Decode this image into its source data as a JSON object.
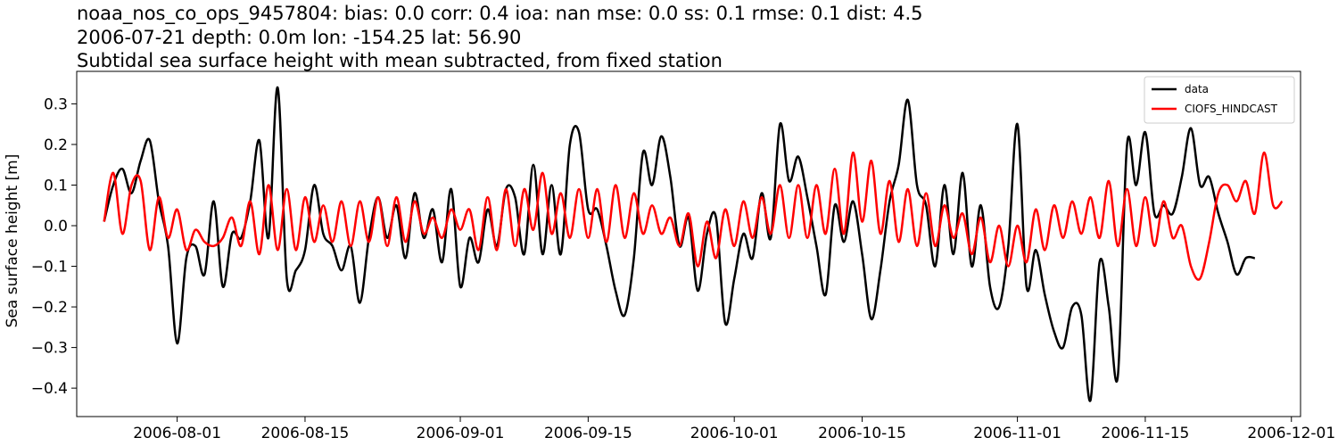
{
  "titles": {
    "line1": "noaa_nos_co_ops_9457804: bias: 0.0  corr: 0.4  ioa: nan  mse: 0.0  ss: 0.1  rmse: 0.1  dist: 4.5",
    "line2": "2006-07-21 depth: 0.0m lon: -154.25 lat: 56.90",
    "line3": "Subtidal sea surface height with mean subtracted, from fixed station"
  },
  "chart_data": {
    "type": "line",
    "title": "noaa_nos_co_ops_9457804: bias: 0.0  corr: 0.4  ioa: nan  mse: 0.0  ss: 0.1  rmse: 0.1  dist: 4.5",
    "subtitle": "2006-07-21 depth: 0.0m lon: -154.25 lat: 56.90 / Subtidal sea surface height with mean subtracted, from fixed station",
    "xlabel": "",
    "ylabel": "Sea surface height [m]",
    "xlim": [
      "2006-07-21",
      "2006-12-02"
    ],
    "ylim": [
      -0.47,
      0.38
    ],
    "x_ticks": [
      "2006-08-01",
      "2006-08-15",
      "2006-09-01",
      "2006-09-15",
      "2006-10-01",
      "2006-10-15",
      "2006-11-01",
      "2006-11-15",
      "2006-12-01"
    ],
    "y_ticks": [
      -0.4,
      -0.3,
      -0.2,
      -0.1,
      0.0,
      0.1,
      0.2,
      0.3
    ],
    "y_tick_labels": [
      "−0.4",
      "−0.3",
      "−0.2",
      "−0.1",
      "0.0",
      "0.1",
      "0.2",
      "0.3"
    ],
    "grid": false,
    "legend_position": "top-right",
    "series": [
      {
        "name": "data",
        "color": "#000000",
        "points": [
          [
            "2006-07-24",
            0.01
          ],
          [
            "2006-07-25",
            0.1
          ],
          [
            "2006-07-26",
            0.14
          ],
          [
            "2006-07-27",
            0.08
          ],
          [
            "2006-07-28",
            0.16
          ],
          [
            "2006-07-29",
            0.21
          ],
          [
            "2006-07-30",
            0.06
          ],
          [
            "2006-07-31",
            -0.05
          ],
          [
            "2006-08-01",
            -0.29
          ],
          [
            "2006-08-02",
            -0.08
          ],
          [
            "2006-08-03",
            -0.05
          ],
          [
            "2006-08-04",
            -0.12
          ],
          [
            "2006-08-05",
            0.06
          ],
          [
            "2006-08-06",
            -0.15
          ],
          [
            "2006-08-07",
            -0.02
          ],
          [
            "2006-08-08",
            -0.03
          ],
          [
            "2006-08-09",
            0.06
          ],
          [
            "2006-08-10",
            0.21
          ],
          [
            "2006-08-11",
            -0.03
          ],
          [
            "2006-08-12",
            0.34
          ],
          [
            "2006-08-13",
            -0.13
          ],
          [
            "2006-08-14",
            -0.11
          ],
          [
            "2006-08-15",
            -0.06
          ],
          [
            "2006-08-16",
            0.1
          ],
          [
            "2006-08-17",
            -0.02
          ],
          [
            "2006-08-18",
            -0.05
          ],
          [
            "2006-08-19",
            -0.11
          ],
          [
            "2006-08-20",
            -0.05
          ],
          [
            "2006-08-21",
            -0.19
          ],
          [
            "2006-08-22",
            -0.03
          ],
          [
            "2006-08-23",
            0.07
          ],
          [
            "2006-08-24",
            -0.03
          ],
          [
            "2006-08-25",
            0.05
          ],
          [
            "2006-08-26",
            -0.08
          ],
          [
            "2006-08-27",
            0.08
          ],
          [
            "2006-08-28",
            -0.03
          ],
          [
            "2006-08-29",
            0.04
          ],
          [
            "2006-08-30",
            -0.09
          ],
          [
            "2006-08-31",
            0.09
          ],
          [
            "2006-09-01",
            -0.15
          ],
          [
            "2006-09-02",
            -0.03
          ],
          [
            "2006-09-03",
            -0.09
          ],
          [
            "2006-09-04",
            0.04
          ],
          [
            "2006-09-05",
            -0.05
          ],
          [
            "2006-09-06",
            0.09
          ],
          [
            "2006-09-07",
            0.07
          ],
          [
            "2006-09-08",
            -0.07
          ],
          [
            "2006-09-09",
            0.15
          ],
          [
            "2006-09-10",
            -0.07
          ],
          [
            "2006-09-11",
            0.1
          ],
          [
            "2006-09-12",
            -0.07
          ],
          [
            "2006-09-13",
            0.2
          ],
          [
            "2006-09-14",
            0.23
          ],
          [
            "2006-09-15",
            0.04
          ],
          [
            "2006-09-16",
            0.04
          ],
          [
            "2006-09-17",
            -0.05
          ],
          [
            "2006-09-18",
            -0.16
          ],
          [
            "2006-09-19",
            -0.22
          ],
          [
            "2006-09-20",
            -0.08
          ],
          [
            "2006-09-21",
            0.18
          ],
          [
            "2006-09-22",
            0.1
          ],
          [
            "2006-09-23",
            0.22
          ],
          [
            "2006-09-24",
            0.12
          ],
          [
            "2006-09-25",
            -0.05
          ],
          [
            "2006-09-26",
            0.02
          ],
          [
            "2006-09-27",
            -0.16
          ],
          [
            "2006-09-28",
            -0.02
          ],
          [
            "2006-09-29",
            0.02
          ],
          [
            "2006-09-30",
            -0.24
          ],
          [
            "2006-10-01",
            -0.13
          ],
          [
            "2006-10-02",
            -0.02
          ],
          [
            "2006-10-03",
            -0.08
          ],
          [
            "2006-10-04",
            0.08
          ],
          [
            "2006-10-05",
            -0.03
          ],
          [
            "2006-10-06",
            0.25
          ],
          [
            "2006-10-07",
            0.11
          ],
          [
            "2006-10-08",
            0.17
          ],
          [
            "2006-10-09",
            0.07
          ],
          [
            "2006-10-10",
            -0.05
          ],
          [
            "2006-10-11",
            -0.17
          ],
          [
            "2006-10-12",
            0.05
          ],
          [
            "2006-10-13",
            -0.04
          ],
          [
            "2006-10-14",
            0.06
          ],
          [
            "2006-10-15",
            -0.07
          ],
          [
            "2006-10-16",
            -0.23
          ],
          [
            "2006-10-17",
            -0.11
          ],
          [
            "2006-10-18",
            0.06
          ],
          [
            "2006-10-19",
            0.15
          ],
          [
            "2006-10-20",
            0.31
          ],
          [
            "2006-10-21",
            0.1
          ],
          [
            "2006-10-22",
            0.05
          ],
          [
            "2006-10-23",
            -0.1
          ],
          [
            "2006-10-24",
            0.1
          ],
          [
            "2006-10-25",
            -0.07
          ],
          [
            "2006-10-26",
            0.13
          ],
          [
            "2006-10-27",
            -0.1
          ],
          [
            "2006-10-28",
            0.05
          ],
          [
            "2006-10-29",
            -0.15
          ],
          [
            "2006-10-30",
            -0.2
          ],
          [
            "2006-10-31",
            -0.05
          ],
          [
            "2006-11-01",
            0.25
          ],
          [
            "2006-11-02",
            -0.15
          ],
          [
            "2006-11-03",
            -0.06
          ],
          [
            "2006-11-04",
            -0.17
          ],
          [
            "2006-11-05",
            -0.26
          ],
          [
            "2006-11-06",
            -0.3
          ],
          [
            "2006-11-07",
            -0.2
          ],
          [
            "2006-11-08",
            -0.22
          ],
          [
            "2006-11-09",
            -0.43
          ],
          [
            "2006-11-10",
            -0.09
          ],
          [
            "2006-11-11",
            -0.2
          ],
          [
            "2006-11-12",
            -0.37
          ],
          [
            "2006-11-13",
            0.2
          ],
          [
            "2006-11-14",
            0.1
          ],
          [
            "2006-11-15",
            0.23
          ],
          [
            "2006-11-16",
            0.03
          ],
          [
            "2006-11-17",
            0.05
          ],
          [
            "2006-11-18",
            0.03
          ],
          [
            "2006-11-19",
            0.12
          ],
          [
            "2006-11-20",
            0.24
          ],
          [
            "2006-11-21",
            0.1
          ],
          [
            "2006-11-22",
            0.12
          ],
          [
            "2006-11-23",
            0.03
          ],
          [
            "2006-11-24",
            -0.04
          ],
          [
            "2006-11-25",
            -0.12
          ],
          [
            "2006-11-26",
            -0.08
          ],
          [
            "2006-11-27",
            -0.08
          ]
        ]
      },
      {
        "name": "CIOFS_HINDCAST",
        "color": "#ff0000",
        "points": [
          [
            "2006-07-24",
            0.01
          ],
          [
            "2006-07-25",
            0.13
          ],
          [
            "2006-07-26",
            -0.02
          ],
          [
            "2006-07-27",
            0.1
          ],
          [
            "2006-07-28",
            0.11
          ],
          [
            "2006-07-29",
            -0.06
          ],
          [
            "2006-07-30",
            0.07
          ],
          [
            "2006-07-31",
            -0.03
          ],
          [
            "2006-08-01",
            0.04
          ],
          [
            "2006-08-02",
            -0.06
          ],
          [
            "2006-08-03",
            -0.01
          ],
          [
            "2006-08-04",
            -0.04
          ],
          [
            "2006-08-05",
            -0.05
          ],
          [
            "2006-08-06",
            -0.03
          ],
          [
            "2006-08-07",
            0.02
          ],
          [
            "2006-08-08",
            -0.05
          ],
          [
            "2006-08-09",
            0.06
          ],
          [
            "2006-08-10",
            -0.07
          ],
          [
            "2006-08-11",
            0.1
          ],
          [
            "2006-08-12",
            -0.06
          ],
          [
            "2006-08-13",
            0.09
          ],
          [
            "2006-08-14",
            -0.06
          ],
          [
            "2006-08-15",
            0.07
          ],
          [
            "2006-08-16",
            -0.04
          ],
          [
            "2006-08-17",
            0.05
          ],
          [
            "2006-08-18",
            -0.04
          ],
          [
            "2006-08-19",
            0.06
          ],
          [
            "2006-08-20",
            -0.05
          ],
          [
            "2006-08-21",
            0.06
          ],
          [
            "2006-08-22",
            -0.04
          ],
          [
            "2006-08-23",
            0.07
          ],
          [
            "2006-08-24",
            -0.05
          ],
          [
            "2006-08-25",
            0.07
          ],
          [
            "2006-08-26",
            -0.04
          ],
          [
            "2006-08-27",
            0.06
          ],
          [
            "2006-08-28",
            -0.02
          ],
          [
            "2006-08-29",
            0.02
          ],
          [
            "2006-08-30",
            -0.03
          ],
          [
            "2006-08-31",
            0.04
          ],
          [
            "2006-09-01",
            -0.01
          ],
          [
            "2006-09-02",
            0.04
          ],
          [
            "2006-09-03",
            -0.06
          ],
          [
            "2006-09-04",
            0.07
          ],
          [
            "2006-09-05",
            -0.06
          ],
          [
            "2006-09-06",
            0.09
          ],
          [
            "2006-09-07",
            -0.05
          ],
          [
            "2006-09-08",
            0.09
          ],
          [
            "2006-09-09",
            -0.01
          ],
          [
            "2006-09-10",
            0.13
          ],
          [
            "2006-09-11",
            -0.02
          ],
          [
            "2006-09-12",
            0.08
          ],
          [
            "2006-09-13",
            -0.03
          ],
          [
            "2006-09-14",
            0.09
          ],
          [
            "2006-09-15",
            -0.03
          ],
          [
            "2006-09-16",
            0.09
          ],
          [
            "2006-09-17",
            -0.04
          ],
          [
            "2006-09-18",
            0.1
          ],
          [
            "2006-09-19",
            -0.03
          ],
          [
            "2006-09-20",
            0.08
          ],
          [
            "2006-09-21",
            -0.02
          ],
          [
            "2006-09-22",
            0.05
          ],
          [
            "2006-09-23",
            -0.02
          ],
          [
            "2006-09-24",
            0.02
          ],
          [
            "2006-09-25",
            -0.05
          ],
          [
            "2006-09-26",
            0.03
          ],
          [
            "2006-09-27",
            -0.1
          ],
          [
            "2006-09-28",
            0.01
          ],
          [
            "2006-09-29",
            -0.08
          ],
          [
            "2006-09-30",
            0.04
          ],
          [
            "2006-10-01",
            -0.05
          ],
          [
            "2006-10-02",
            0.06
          ],
          [
            "2006-10-03",
            -0.03
          ],
          [
            "2006-10-04",
            0.07
          ],
          [
            "2006-10-05",
            -0.02
          ],
          [
            "2006-10-06",
            0.1
          ],
          [
            "2006-10-07",
            -0.03
          ],
          [
            "2006-10-08",
            0.1
          ],
          [
            "2006-10-09",
            -0.03
          ],
          [
            "2006-10-10",
            0.1
          ],
          [
            "2006-10-11",
            -0.02
          ],
          [
            "2006-10-12",
            0.14
          ],
          [
            "2006-10-13",
            -0.02
          ],
          [
            "2006-10-14",
            0.18
          ],
          [
            "2006-10-15",
            0.01
          ],
          [
            "2006-10-16",
            0.16
          ],
          [
            "2006-10-17",
            -0.02
          ],
          [
            "2006-10-18",
            0.11
          ],
          [
            "2006-10-19",
            -0.04
          ],
          [
            "2006-10-20",
            0.09
          ],
          [
            "2006-10-21",
            -0.05
          ],
          [
            "2006-10-22",
            0.08
          ],
          [
            "2006-10-23",
            -0.05
          ],
          [
            "2006-10-24",
            0.05
          ],
          [
            "2006-10-25",
            -0.03
          ],
          [
            "2006-10-26",
            0.03
          ],
          [
            "2006-10-27",
            -0.07
          ],
          [
            "2006-10-28",
            0.02
          ],
          [
            "2006-10-29",
            -0.09
          ],
          [
            "2006-10-30",
            0.0
          ],
          [
            "2006-10-31",
            -0.1
          ],
          [
            "2006-11-01",
            0.0
          ],
          [
            "2006-11-02",
            -0.09
          ],
          [
            "2006-11-03",
            0.04
          ],
          [
            "2006-11-04",
            -0.06
          ],
          [
            "2006-11-05",
            0.05
          ],
          [
            "2006-11-06",
            -0.03
          ],
          [
            "2006-11-07",
            0.06
          ],
          [
            "2006-11-08",
            -0.02
          ],
          [
            "2006-11-09",
            0.07
          ],
          [
            "2006-11-10",
            -0.03
          ],
          [
            "2006-11-11",
            0.11
          ],
          [
            "2006-11-12",
            -0.05
          ],
          [
            "2006-11-13",
            0.09
          ],
          [
            "2006-11-14",
            -0.05
          ],
          [
            "2006-11-15",
            0.07
          ],
          [
            "2006-11-16",
            -0.05
          ],
          [
            "2006-11-17",
            0.06
          ],
          [
            "2006-11-18",
            -0.03
          ],
          [
            "2006-11-19",
            0.0
          ],
          [
            "2006-11-20",
            -0.1
          ],
          [
            "2006-11-21",
            -0.13
          ],
          [
            "2006-11-22",
            -0.04
          ],
          [
            "2006-11-23",
            0.08
          ],
          [
            "2006-11-24",
            0.1
          ],
          [
            "2006-11-25",
            0.06
          ],
          [
            "2006-11-26",
            0.11
          ],
          [
            "2006-11-27",
            0.03
          ],
          [
            "2006-11-28",
            0.18
          ],
          [
            "2006-11-29",
            0.05
          ],
          [
            "2006-11-30",
            0.06
          ]
        ]
      }
    ]
  }
}
